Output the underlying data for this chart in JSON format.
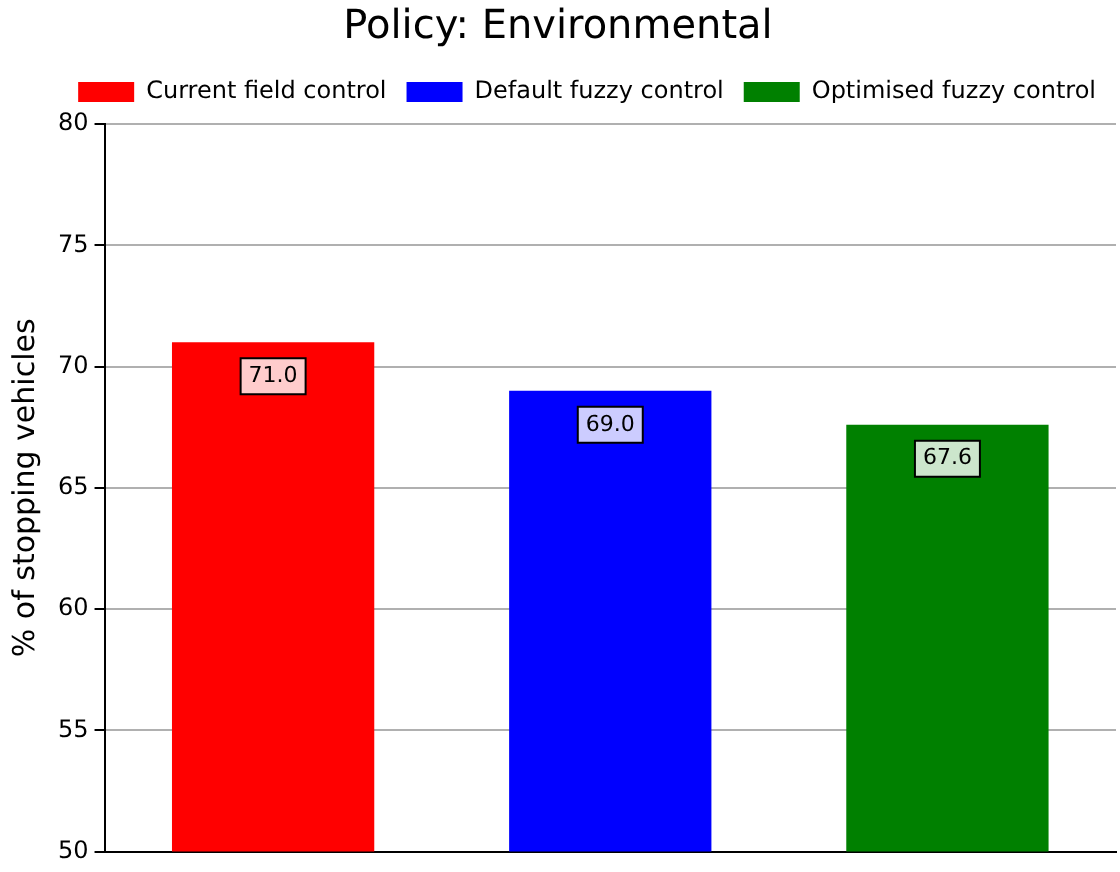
{
  "chart_data": {
    "type": "bar",
    "title": "Policy: Environmental",
    "ylabel": "% of stopping vehicles",
    "categories": [
      null,
      null,
      null
    ],
    "series": [
      {
        "name": "Current field control",
        "color": "#ff0000",
        "values": [
          71.0,
          null,
          null
        ],
        "value_labels": [
          "71.0",
          null,
          null
        ]
      },
      {
        "name": "Default fuzzy control",
        "color": "#0000ff",
        "values": [
          null,
          69.0,
          null
        ],
        "value_labels": [
          null,
          "69.0",
          null
        ]
      },
      {
        "name": "Optimised fuzzy control",
        "color": "#008000",
        "values": [
          null,
          null,
          67.6
        ],
        "value_labels": [
          null,
          null,
          "67.6"
        ]
      }
    ],
    "ylim": [
      50,
      80
    ],
    "yticks": [
      50,
      55,
      60,
      65,
      70,
      75,
      80
    ],
    "grid": "y",
    "legend": "top right",
    "tick_labels": "y"
  }
}
